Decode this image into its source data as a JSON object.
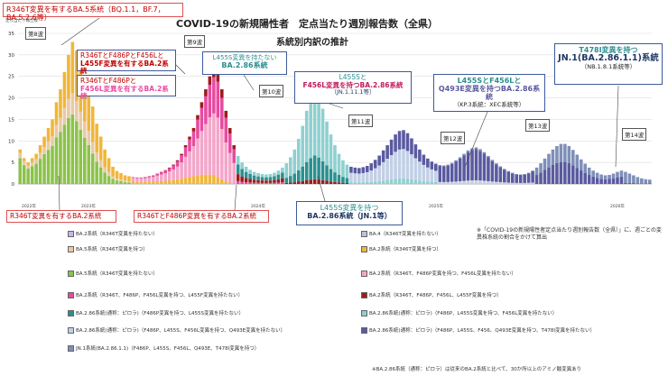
{
  "title": "COVID-19の新規陽性者　定点当たり週別報告数（全県）",
  "subtitle": "系統別内訳の推計",
  "y_axis_caption": "定点当たり報告数",
  "note_right": "※「COVID-19の新規陽性者定点当たり週別報告数（全県）」に、週ごとの変異株系統の割合をかけて算出",
  "note_bottom": "※BA.2.86系統（通称：ピロラ）は従来のBA.2系統と比べて、30か所以上のアミノ酸変異あり",
  "waves": {
    "w8": "第8波",
    "w9": "第9波",
    "w10": "第10波",
    "w11": "第11波",
    "w12": "第12波",
    "w13": "第13波",
    "w14": "第14波"
  },
  "callouts": {
    "ba5": "R346T変異を有するBA.5系統（BQ.1.1，BF.7，BA.5.2.6等）",
    "ba2_a": "R346TとF486PとF456Lと",
    "ba2_a2": "L455F変異を有するBA.2系統",
    "ba2_b": "R346TとF486Pと",
    "ba2_b2": "F456L変異を有するBA.2系統",
    "ba286_a": "L455S変異を持たない",
    "ba286_a2": "BA.2.86系統",
    "ba286_b": "L455Sと",
    "ba286_b2": "F456L変異を持つBA.2.86系統",
    "ba286_b3": "（JN.1.11.1等）",
    "ba286_c": "L455SとF456Lと",
    "ba286_c2": "Q493E変異を持つBA.2.86系統",
    "ba286_c3": "（KP.3系統：XEC系統等）",
    "jn1_t": "T478I変異を持つ",
    "jn1_t2": "JN.1(BA.2.86.1.1)系統",
    "jn1_t3": "（NB.1.8.1系統等）",
    "ba2_r346": "R346T変異を有するBA.2系統",
    "ba2_r346f": "R346TとF486P変異を有するBA.2系統",
    "jn1": "L455S変異を持つ",
    "jn1_2": "BA.2.86系統（JN.1等）"
  },
  "x_labels": [
    "2022年",
    "2023年",
    "2024年",
    "2025年",
    "2026年"
  ],
  "legend": [
    {
      "label": "BA.2系統（R346T変異を持たない）",
      "color": "#c9b6e4"
    },
    {
      "label": "BA.4（R346T変異を持たない）",
      "color": "#b9c3da"
    },
    {
      "label": "BA.5系統（R346T変異を持つ）",
      "color": "#e8c9a8"
    },
    {
      "label": "BA.2系統（R346T変異を持つ）",
      "color": "#f0b63a"
    },
    {
      "label": "BA.5系統（R346T変異を持たない）",
      "color": "#8bc34a"
    },
    {
      "label": "BA.2系統（R346T、F486P変異を持つ、F456L変異を持たない）",
      "color": "#f4a6c9"
    },
    {
      "label": "BA.2系統（R346T、F486P、F456L変異を持つ、L455F変異を持たない）",
      "color": "#e84aa0"
    },
    {
      "label": "BA.2系統（R346T、F486P、F456L、L455F変異を持つ）",
      "color": "#9e1b1b"
    },
    {
      "label": "BA.2.86系統(通称：ピロラ)（F486P変異を持つ、L455S変異を持たない）",
      "color": "#2b8f8f"
    },
    {
      "label": "BA.2.86系統(通称：ピロラ)（F486P、L455S変異を持つ、F456L変異を持たない）",
      "color": "#8fd0cf"
    },
    {
      "label": "BA.2.86系統(通称：ピロラ)（F486P、L455S、F456L変異を持つ、Q493E変異を持たない）",
      "color": "#c2cfe6"
    },
    {
      "label": "BA.2.86系統(通称：ピロラ)（F486P、L455S、F456、Q493E変異を持つ、T478I変異を持たない）",
      "color": "#5a5aa0"
    },
    {
      "label": "JN.1系統(BA.2.86.1.1)（F486P、L455S、F456L、Q493E、T478I変異を持つ）",
      "color": "#7e8fb8"
    }
  ],
  "chart_data": {
    "type": "bar",
    "stacked": true,
    "title": "COVID-19の新規陽性者　定点当たり週別報告数（全県）",
    "subtitle": "系統別内訳の推計",
    "ylabel": "定点当たり報告数",
    "ylim": [
      0,
      35
    ],
    "yticks": [
      0,
      5,
      10,
      15,
      20,
      25,
      30,
      35
    ],
    "x_range": [
      "2022-10",
      "2026-02"
    ],
    "weekly_totals": [
      8,
      6,
      5,
      6,
      7,
      9,
      11,
      13,
      15,
      19,
      22,
      26,
      30,
      33,
      31,
      28,
      25,
      22,
      18,
      14,
      11,
      8,
      6,
      4,
      3,
      2.5,
      2,
      1.8,
      1.6,
      1.5,
      1.5,
      1.6,
      1.8,
      2,
      2.4,
      2.8,
      3.2,
      3.8,
      4.5,
      5.5,
      7,
      9,
      11,
      13,
      16,
      19,
      22,
      25,
      27,
      26,
      22,
      17,
      13,
      9,
      6.5,
      5,
      4,
      3.3,
      2.8,
      2.5,
      2.3,
      2.2,
      2.3,
      2.6,
      3.1,
      3.8,
      4.8,
      6.2,
      8,
      10.5,
      13.5,
      17,
      20,
      22,
      20.5,
      17.5,
      14.5,
      11.5,
      9,
      7,
      5.5,
      4.5,
      4,
      3.8,
      3.7,
      3.9,
      4.2,
      4.8,
      5.6,
      6.6,
      7.8,
      9,
      10.3,
      11.5,
      12.3,
      12.5,
      11.8,
      10.6,
      9.2,
      8,
      6.8,
      5.9,
      5.2,
      4.7,
      4.4,
      4.3,
      4.5,
      4.9,
      5.5,
      6.2,
      7,
      7.8,
      8.3,
      8.5,
      8.1,
      7.4,
      6.5,
      5.6,
      4.8,
      4.1,
      3.5,
      3,
      2.6,
      2.3,
      2.2,
      2.3,
      2.6,
      3.1,
      3.8,
      4.8,
      5.9,
      7,
      8,
      8.8,
      9.3,
      9.3,
      8.8,
      7.9,
      6.8,
      5.7,
      4.7,
      3.8,
      3.1,
      2.6,
      2.2,
      2,
      2.1,
      2.4,
      2.8,
      3.1,
      2.8,
      2.4,
      2,
      1.6,
      1.3,
      1.1,
      1
    ],
    "series": [
      {
        "name": "BA.5系統（R346T変異を持たない）",
        "color": "#8bc34a"
      },
      {
        "name": "BA.5系統（R346T変異を持つ）",
        "color": "#e8c9a8"
      },
      {
        "name": "BA.2系統（R346T変異を持つ）",
        "color": "#f0b63a"
      },
      {
        "name": "BA.2系統（R346T、F486P変異を持つ、F456L変異を持たない）",
        "color": "#f4a6c9"
      },
      {
        "name": "BA.2系統（R346T、F486P、F456L変異を持つ、L455F変異を持たない）",
        "color": "#e84aa0"
      },
      {
        "name": "BA.2系統（R346T、F486P、F456L、L455F変異を持つ）",
        "color": "#9e1b1b"
      },
      {
        "name": "BA.2.86系統（L455S変異を持たない）",
        "color": "#2b8f8f"
      },
      {
        "name": "BA.2.86系統（L455S変異を持つ、JN.1等）",
        "color": "#8fd0cf"
      },
      {
        "name": "BA.2.86系統（L455S、F456L変異を持つ）",
        "color": "#c2cfe6"
      },
      {
        "name": "BA.2.86系統（L455S、F456L、Q493E変異を持つ）",
        "color": "#5a5aa0"
      },
      {
        "name": "JN.1系統（T478I変異を持つ）",
        "color": "#7e8fb8"
      }
    ]
  }
}
